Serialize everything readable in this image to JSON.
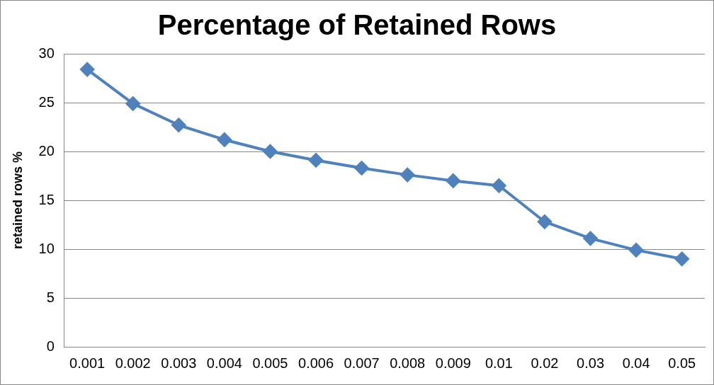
{
  "chart_data": {
    "type": "line",
    "title": "Percentage of Retained Rows",
    "ylabel": "retained rows %",
    "categories": [
      "0.001",
      "0.002",
      "0.003",
      "0.004",
      "0.005",
      "0.006",
      "0.007",
      "0.008",
      "0.009",
      "0.01",
      "0.02",
      "0.03",
      "0.04",
      "0.05"
    ],
    "series": [
      {
        "color": "#4f81bd",
        "values": [
          28.4,
          24.9,
          22.7,
          21.2,
          20.0,
          19.1,
          18.3,
          17.6,
          17.0,
          16.5,
          12.8,
          11.1,
          9.9,
          9.0
        ]
      }
    ],
    "ylim": [
      0,
      30
    ],
    "yticks": [
      0,
      5,
      10,
      15,
      20,
      25,
      30
    ],
    "grid": "y",
    "legend": false,
    "marker": "diamond",
    "line_style": "solid"
  }
}
